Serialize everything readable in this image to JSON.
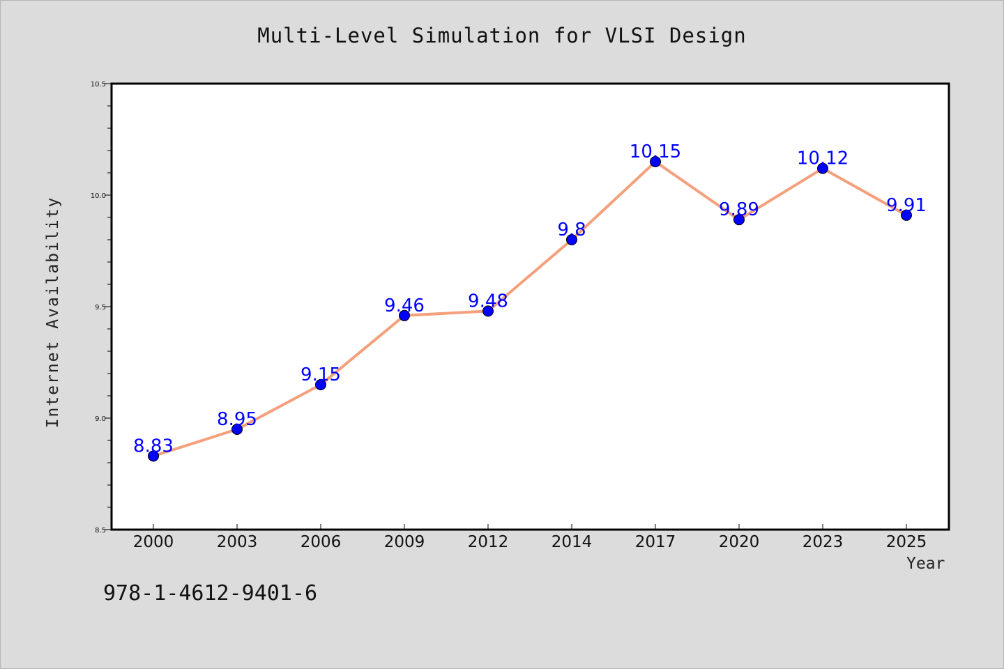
{
  "colors": {
    "line": "#f4a07c",
    "marker": "#0000ff",
    "label": "#0000ff",
    "plot_bg": "#ffffff",
    "figure_bg": "#dcdcdc"
  },
  "footer_text": "978-1-4612-9401-6",
  "chart_data": {
    "type": "line",
    "title": "Multi-Level Simulation for VLSI Design",
    "xlabel": "Year",
    "ylabel": "Internet Availability",
    "categories": [
      "2000",
      "2003",
      "2006",
      "2009",
      "2012",
      "2014",
      "2017",
      "2020",
      "2023",
      "2025"
    ],
    "values": [
      8.83,
      8.95,
      9.15,
      9.46,
      9.48,
      9.8,
      10.15,
      9.89,
      10.12,
      9.91
    ],
    "data_labels": [
      "8.83",
      "8.95",
      "9.15",
      "9.46",
      "9.48",
      "9.8",
      "10.15",
      "9.89",
      "10.12",
      "9.91"
    ],
    "ylim": [
      8.5,
      10.5
    ],
    "yticks": [
      "8.5",
      "9.0",
      "9.5",
      "10.0",
      "10.5"
    ],
    "grid": false,
    "legend": "none"
  }
}
